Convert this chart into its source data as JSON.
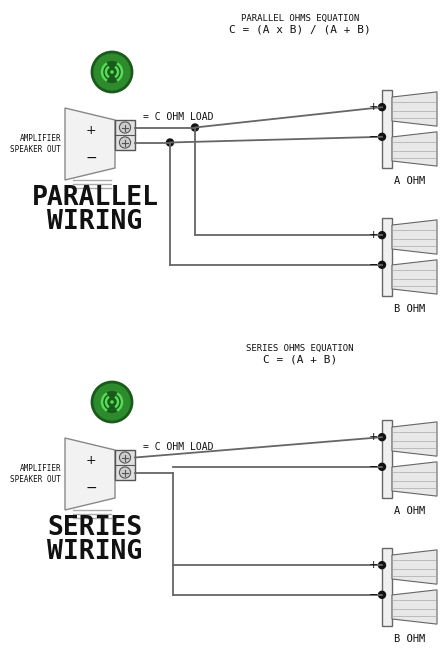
{
  "bg_color": "#ffffff",
  "line_color": "#666666",
  "dark_color": "#111111",
  "green_outer": "#2d8a2d",
  "green_inner": "#55dd55",
  "green_dark": "#1a5a1a",
  "parallel_title1": "PARALLEL OHMS EQUATION",
  "parallel_title2": "C = (A x B) / (A + B)",
  "series_title1": "SERIES OHMS EQUATION",
  "series_title2": "C = (A + B)",
  "amp_label": "AMPLIFIER\nSPEAKER OUT",
  "c_ohm_load": "= C OHM LOAD",
  "a_ohm": "A OHM",
  "b_ohm": "B OHM"
}
